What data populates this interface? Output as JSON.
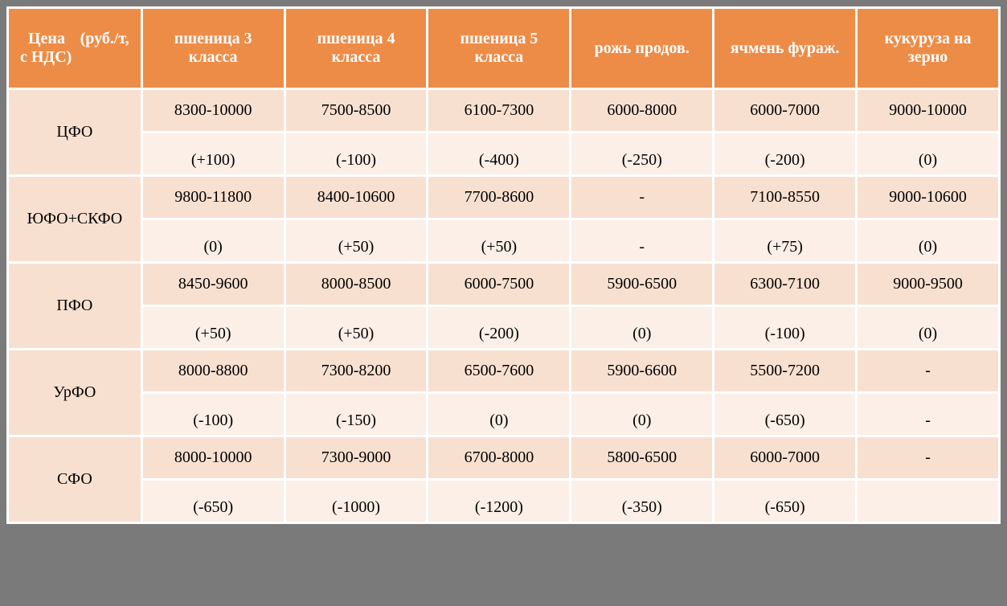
{
  "table": {
    "header_bg": "#ed8c47",
    "header_color": "#ffffff",
    "cell_bg_region": "#f8e0d0",
    "cell_bg_price": "#f8e0d0",
    "cell_bg_delta": "#fbefe7",
    "border_color": "#ffffff",
    "font_family": "Times New Roman",
    "header_fontsize": 20,
    "cell_fontsize": 20,
    "columns": [
      "Цена (руб./т, с НДС)",
      "пшеница 3 класса",
      "пшеница 4 класса",
      "пшеница 5 класса",
      "рожь продов.",
      "ячмень фураж.",
      "кукуруза на зерно"
    ],
    "rows": [
      {
        "region": "ЦФО",
        "prices": [
          "8300-10000",
          "7500-8500",
          "6100-7300",
          "6000-8000",
          "6000-7000",
          "9000-10000"
        ],
        "deltas": [
          "(+100)",
          "(-100)",
          "(-400)",
          "(-250)",
          "(-200)",
          "(0)"
        ]
      },
      {
        "region": "ЮФО+СКФО",
        "prices": [
          "9800-11800",
          "8400-10600",
          "7700-8600",
          "-",
          "7100-8550",
          "9000-10600"
        ],
        "deltas": [
          "(0)",
          "(+50)",
          "(+50)",
          "-",
          "(+75)",
          "(0)"
        ]
      },
      {
        "region": "ПФО",
        "prices": [
          "8450-9600",
          "8000-8500",
          "6000-7500",
          "5900-6500",
          "6300-7100",
          "9000-9500"
        ],
        "deltas": [
          "(+50)",
          "(+50)",
          "(-200)",
          "(0)",
          "(-100)",
          "(0)"
        ]
      },
      {
        "region": "УрФО",
        "prices": [
          "8000-8800",
          "7300-8200",
          "6500-7600",
          "5900-6600",
          "5500-7200",
          "-"
        ],
        "deltas": [
          "(-100)",
          "(-150)",
          "(0)",
          "(0)",
          "(-650)",
          "-"
        ]
      },
      {
        "region": "СФО",
        "prices": [
          "8000-10000",
          "7300-9000",
          "6700-8000",
          "5800-6500",
          "6000-7000",
          "-"
        ],
        "deltas": [
          "(-650)",
          "(-1000)",
          "(-1200)",
          "(-350)",
          "(-650)",
          ""
        ]
      }
    ]
  }
}
